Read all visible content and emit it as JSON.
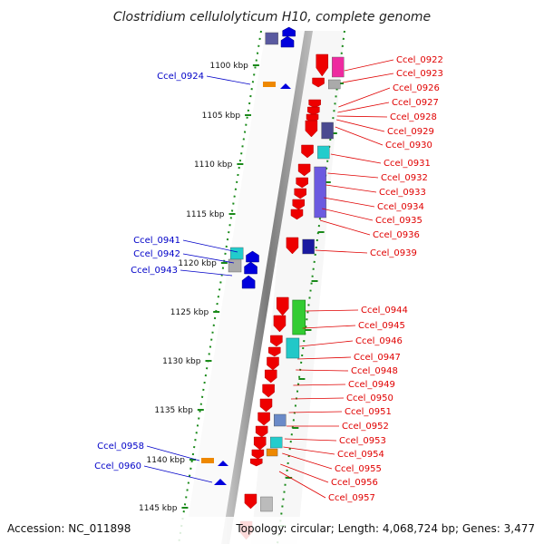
{
  "title": "Clostridium cellulolyticum H10, complete genome",
  "footer": {
    "accession": "Accession: NC_011898",
    "summary": "Topology: circular; Length: 4,068,724 bp; Genes: 3,477"
  },
  "scale_labels": [
    "1100 kbp",
    "1105 kbp",
    "1110 kbp",
    "1115 kbp",
    "1120 kbp",
    "1125 kbp",
    "1130 kbp",
    "1135 kbp",
    "1140 kbp",
    "1145 kbp"
  ],
  "genes_right": [
    "Ccel_0922",
    "Ccel_0923",
    "Ccel_0926",
    "Ccel_0927",
    "Ccel_0928",
    "Ccel_0929",
    "Ccel_0930",
    "Ccel_0931",
    "Ccel_0932",
    "Ccel_0933",
    "Ccel_0934",
    "Ccel_0935",
    "Ccel_0936",
    "Ccel_0939",
    "Ccel_0944",
    "Ccel_0945",
    "Ccel_0946",
    "Ccel_0947",
    "Ccel_0948",
    "Ccel_0949",
    "Ccel_0950",
    "Ccel_0951",
    "Ccel_0952",
    "Ccel_0953",
    "Ccel_0954",
    "Ccel_0955",
    "Ccel_0956",
    "Ccel_0957"
  ],
  "genes_left": [
    "Ccel_0924",
    "Ccel_0941",
    "Ccel_0942",
    "Ccel_0943",
    "Ccel_0958",
    "Ccel_0960"
  ],
  "colors": {
    "forward_gene": "#ee0000",
    "reverse_gene": "#0000dd",
    "right_label": "#e00000",
    "left_label": "#0000c8",
    "backbone": "#888888",
    "ruler": "#1a8a1a"
  }
}
